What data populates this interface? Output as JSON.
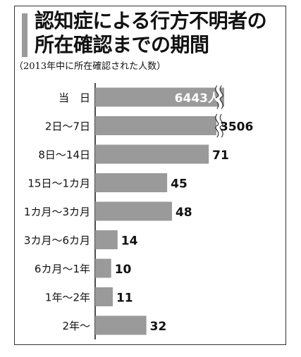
{
  "title_line1": "認知症による行方不明者の",
  "title_line2": "所在確認までの期間",
  "subtitle": "（2013年中に所在確認された人数）",
  "colors": {
    "bar": "#9a9a9a",
    "text": "#111111",
    "break_line": "#ffffff"
  },
  "chart_data": {
    "type": "bar",
    "orientation": "horizontal",
    "title": "認知症による行方不明者の所在確認までの期間",
    "subtitle": "（2013年中に所在確認された人数）",
    "categories": [
      "当　日",
      "2日～7日",
      "8日～14日",
      "15日～1カ月",
      "1カ月～3カ月",
      "3カ月～6カ月",
      "6カ月～1年",
      "1年～2年",
      "2年～"
    ],
    "values": [
      6443,
      3506,
      71,
      45,
      48,
      14,
      10,
      11,
      32
    ],
    "value_labels": [
      "6443人",
      "3506",
      "71",
      "45",
      "48",
      "14",
      "10",
      "11",
      "32"
    ],
    "axis_break": {
      "applies_to": [
        "当　日",
        "2日～7日"
      ]
    },
    "xlim": [
      0,
      80
    ],
    "grid": false,
    "legend": "none"
  }
}
